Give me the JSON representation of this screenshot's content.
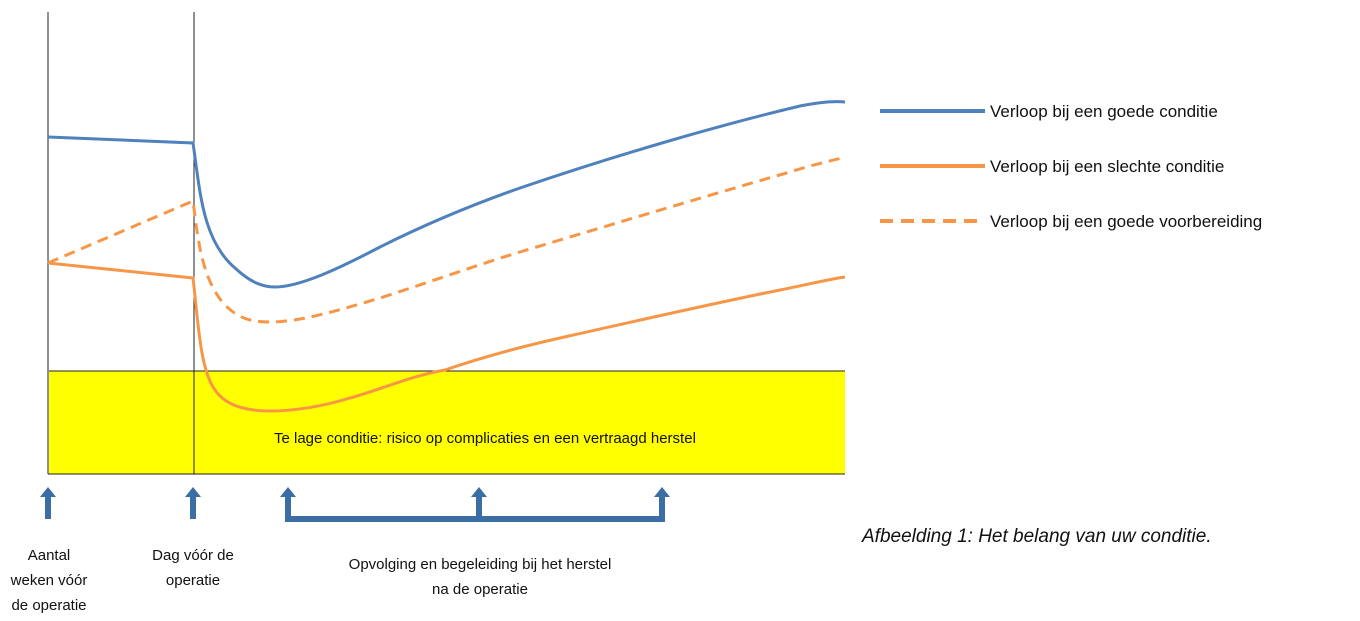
{
  "legend": [
    {
      "label": "Verloop bij een goede conditie",
      "color": "#4f81bd",
      "style": "solid"
    },
    {
      "label": "Verloop bij een slechte conditie",
      "color": "#f79646",
      "style": "solid"
    },
    {
      "label": "Verloop bij een goede voorbereiding",
      "color": "#f79646",
      "style": "dashed"
    }
  ],
  "risk_zone": {
    "label": "Te lage conditie: risico op complicaties en een vertraagd herstel",
    "color": "#ffff00"
  },
  "timeline_labels": {
    "weeks_before": "Aantal weken vóór de operatie",
    "day_before": "Dag vóór de operatie",
    "follow_up": "Opvolging en begeleiding bij het herstel na de operatie"
  },
  "arrow_color": "#3b6ea5",
  "caption": "Afbeelding 1: Het belang van uw conditie."
}
